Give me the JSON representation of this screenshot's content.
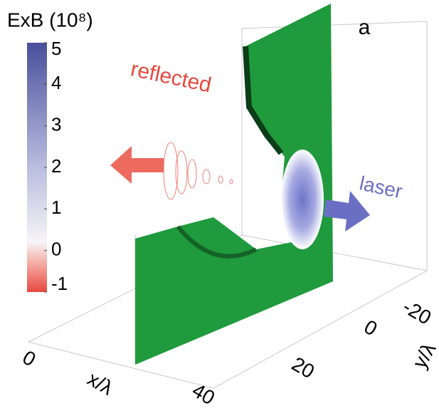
{
  "colorbar": {
    "title": "ExB (10⁸)",
    "range": [
      -1,
      5
    ],
    "ticks": [
      5,
      4,
      3,
      2,
      1,
      0,
      -1
    ]
  },
  "panel_label": "a",
  "annotations": {
    "reflected": "reflected",
    "laser": "laser"
  },
  "x_axis": {
    "title": "x/λ",
    "ticks": [
      "0",
      "40"
    ]
  },
  "y_axis": {
    "title": "y/λ",
    "ticks": [
      "20",
      "0",
      "-20"
    ]
  }
}
